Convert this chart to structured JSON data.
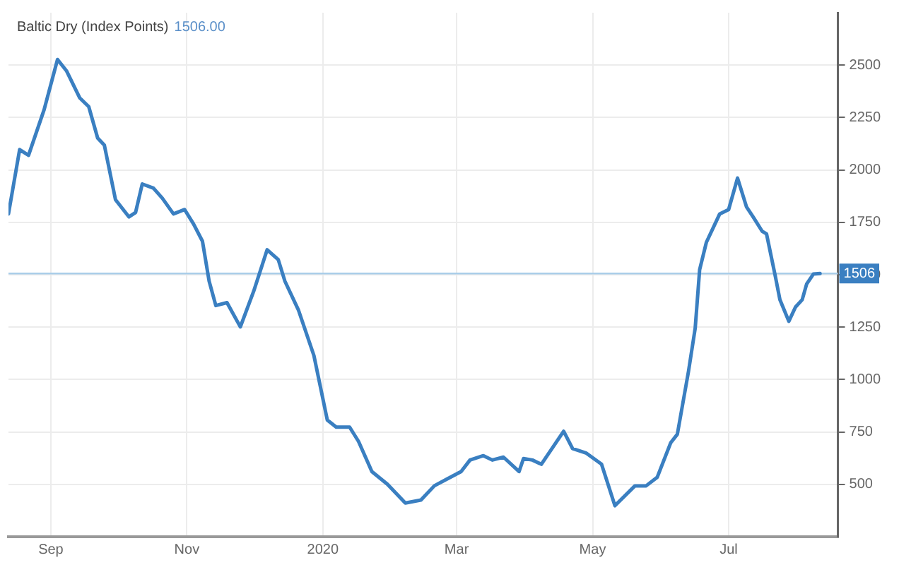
{
  "chart_data": {
    "type": "line",
    "title": "Baltic Dry (Index Points)",
    "subtitle": "1506.00",
    "x": [
      "2019-08-13",
      "2019-08-18",
      "2019-08-22",
      "2019-08-29",
      "2019-09-04",
      "2019-09-08",
      "2019-09-14",
      "2019-09-18",
      "2019-09-22",
      "2019-09-25",
      "2019-09-30",
      "2019-10-06",
      "2019-10-09",
      "2019-10-12",
      "2019-10-17",
      "2019-10-21",
      "2019-10-26",
      "2019-10-31",
      "2019-11-04",
      "2019-11-08",
      "2019-11-11",
      "2019-11-14",
      "2019-11-19",
      "2019-11-25",
      "2019-12-01",
      "2019-12-07",
      "2019-12-12",
      "2019-12-15",
      "2019-12-21",
      "2019-12-28",
      "2020-01-03",
      "2020-01-07",
      "2020-01-13",
      "2020-01-17",
      "2020-01-23",
      "2020-01-30",
      "2020-02-07",
      "2020-02-14",
      "2020-02-20",
      "2020-02-26",
      "2020-03-03",
      "2020-03-07",
      "2020-03-13",
      "2020-03-17",
      "2020-03-22",
      "2020-03-29",
      "2020-03-31",
      "2020-04-04",
      "2020-04-08",
      "2020-04-18",
      "2020-04-22",
      "2020-04-28",
      "2020-05-05",
      "2020-05-11",
      "2020-05-20",
      "2020-05-25",
      "2020-05-30",
      "2020-06-05",
      "2020-06-08",
      "2020-06-13",
      "2020-06-16",
      "2020-06-18",
      "2020-06-21",
      "2020-06-27",
      "2020-07-01",
      "2020-07-05",
      "2020-07-09",
      "2020-07-12",
      "2020-07-16",
      "2020-07-18",
      "2020-07-22",
      "2020-07-24",
      "2020-07-28",
      "2020-07-31",
      "2020-08-03",
      "2020-08-05",
      "2020-08-08",
      "2020-08-11"
    ],
    "series": [
      {
        "color": "#3a7fc1",
        "values": [
          1790,
          2097,
          2070,
          2288,
          2527,
          2473,
          2343,
          2302,
          2152,
          2118,
          1858,
          1776,
          1797,
          1933,
          1913,
          1865,
          1790,
          1811,
          1742,
          1660,
          1469,
          1353,
          1367,
          1251,
          1422,
          1619,
          1572,
          1469,
          1333,
          1114,
          807,
          773,
          773,
          705,
          561,
          500,
          411,
          425,
          493,
          527,
          561,
          616,
          637,
          616,
          630,
          561,
          623,
          616,
          596,
          753,
          671,
          650,
          596,
          398,
          493,
          493,
          534,
          698,
          739,
          1039,
          1244,
          1524,
          1654,
          1790,
          1811,
          1961,
          1824,
          1776,
          1708,
          1695,
          1490,
          1381,
          1278,
          1346,
          1381,
          1456,
          1503,
          1506
        ]
      }
    ],
    "xlim": [
      "2019-08-13",
      "2020-08-19"
    ],
    "xticks": [
      {
        "value": "2019-09-01",
        "label": "Sep"
      },
      {
        "value": "2019-11-01",
        "label": "Nov"
      },
      {
        "value": "2020-01-01",
        "label": "2020"
      },
      {
        "value": "2020-03-01",
        "label": "Mar"
      },
      {
        "value": "2020-05-01",
        "label": "May"
      },
      {
        "value": "2020-07-01",
        "label": "Jul"
      }
    ],
    "ylim": [
      250,
      2750
    ],
    "yticks": [
      500,
      750,
      1000,
      1250,
      1500,
      1750,
      2000,
      2250,
      2500
    ],
    "ref_lines": [
      {
        "axis": "y",
        "value": 1506,
        "label": "1506",
        "color": "#a9cde9"
      }
    ],
    "grid": true,
    "legend": false,
    "marker": "none",
    "line_style": "solid"
  }
}
